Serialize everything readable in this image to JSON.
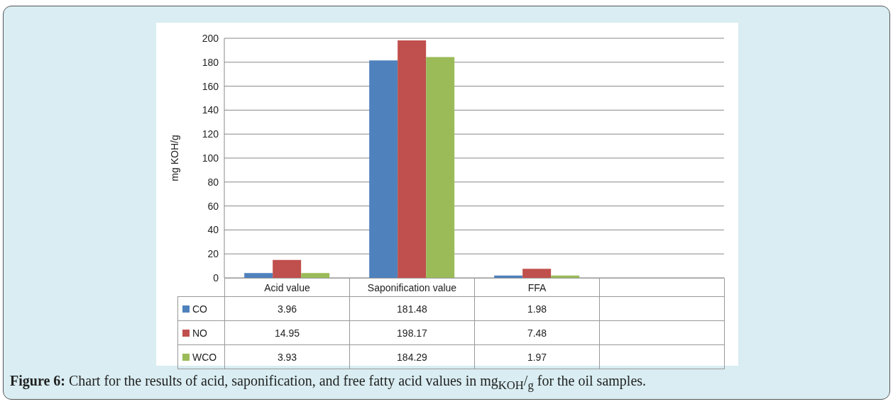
{
  "chart_data": {
    "type": "bar",
    "ylabel": "mg KOH/g",
    "categories": [
      "Acid value",
      "Saponification value",
      "FFA",
      null
    ],
    "series": [
      {
        "name": "CO",
        "color": "#4f81bd",
        "values": [
          3.96,
          181.48,
          1.98,
          null
        ]
      },
      {
        "name": "NO",
        "color": "#c0504d",
        "values": [
          14.95,
          198.17,
          7.48,
          null
        ]
      },
      {
        "name": "WCO",
        "color": "#9bbb59",
        "values": [
          3.93,
          184.29,
          1.97,
          null
        ]
      }
    ],
    "ylim": [
      0,
      200
    ],
    "yticks": [
      0,
      20,
      40,
      60,
      80,
      100,
      120,
      140,
      160,
      180,
      200
    ],
    "grid": "y",
    "legend": "bottom",
    "data_labels": true,
    "annotations": [
      "Figure 6: Chart for the results of acid, saponification, and free fatty acid values in mg$_{KOH}$/$_{g}$ for the oil samples."
    ]
  }
}
